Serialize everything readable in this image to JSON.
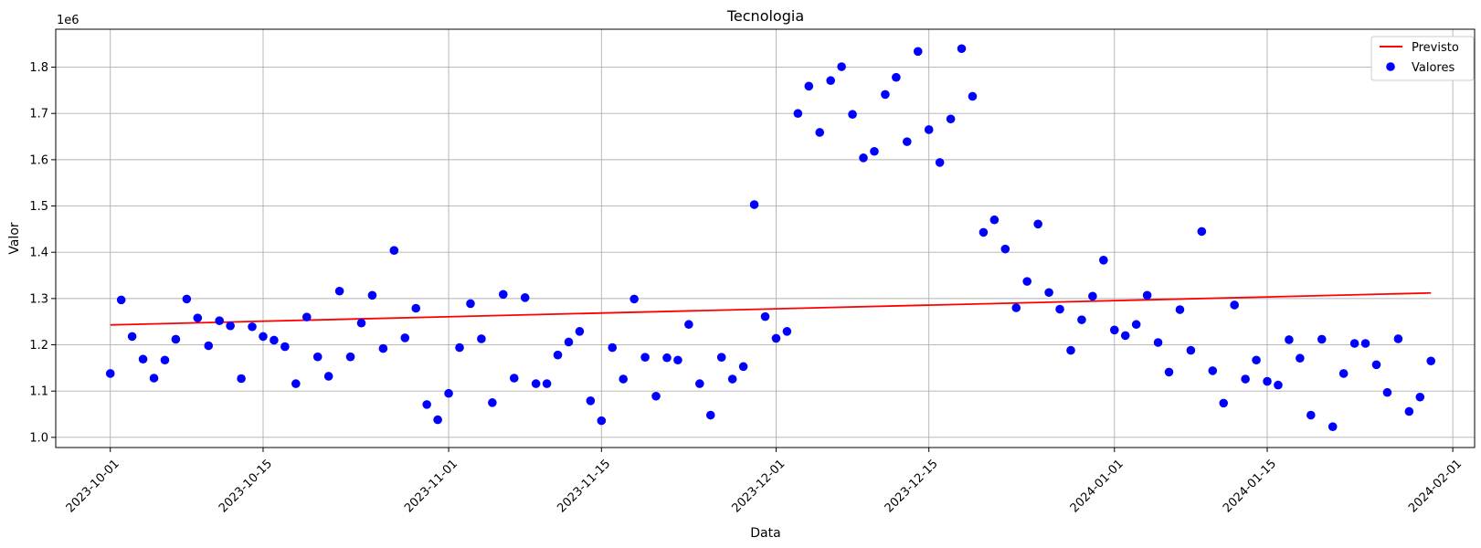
{
  "chart_data": {
    "type": "scatter",
    "title": "Tecnologia",
    "xlabel": "Data",
    "ylabel": "Valor",
    "y_offset_label": "1e6",
    "xlim": [
      "2023-09-26",
      "2024-02-03"
    ],
    "ylim": [
      0.978,
      1.882
    ],
    "y_scale_multiplier": 1000000,
    "grid": true,
    "legend_position": "top-right",
    "x_ticks": [
      "2023-10-01",
      "2023-10-15",
      "2023-11-01",
      "2023-11-15",
      "2023-12-01",
      "2023-12-15",
      "2024-01-01",
      "2024-01-15",
      "2024-02-01"
    ],
    "y_ticks": [
      1.0,
      1.1,
      1.2,
      1.3,
      1.4,
      1.5,
      1.6,
      1.7,
      1.8
    ],
    "y_tick_labels": [
      "1.0",
      "1.1",
      "1.2",
      "1.3",
      "1.4",
      "1.5",
      "1.6",
      "1.7",
      "1.8"
    ],
    "colors": {
      "scatter": "#0000ff",
      "line": "#ff0000",
      "grid": "#b0b0b0"
    },
    "series": [
      {
        "name": "Previsto",
        "kind": "line",
        "x": [
          "2023-10-01",
          "2024-01-30"
        ],
        "y": [
          1.243,
          1.312
        ]
      },
      {
        "name": "Valores",
        "kind": "scatter",
        "x": [
          "2023-10-01",
          "2023-10-02",
          "2023-10-03",
          "2023-10-04",
          "2023-10-05",
          "2023-10-06",
          "2023-10-07",
          "2023-10-08",
          "2023-10-09",
          "2023-10-10",
          "2023-10-11",
          "2023-10-12",
          "2023-10-13",
          "2023-10-14",
          "2023-10-15",
          "2023-10-16",
          "2023-10-17",
          "2023-10-18",
          "2023-10-19",
          "2023-10-20",
          "2023-10-21",
          "2023-10-22",
          "2023-10-23",
          "2023-10-24",
          "2023-10-25",
          "2023-10-26",
          "2023-10-27",
          "2023-10-28",
          "2023-10-29",
          "2023-10-30",
          "2023-10-31",
          "2023-11-01",
          "2023-11-02",
          "2023-11-03",
          "2023-11-04",
          "2023-11-05",
          "2023-11-06",
          "2023-11-07",
          "2023-11-08",
          "2023-11-09",
          "2023-11-10",
          "2023-11-11",
          "2023-11-12",
          "2023-11-13",
          "2023-11-14",
          "2023-11-15",
          "2023-11-16",
          "2023-11-17",
          "2023-11-18",
          "2023-11-19",
          "2023-11-20",
          "2023-11-21",
          "2023-11-22",
          "2023-11-23",
          "2023-11-24",
          "2023-11-25",
          "2023-11-26",
          "2023-11-27",
          "2023-11-28",
          "2023-11-29",
          "2023-11-30",
          "2023-12-01",
          "2023-12-02",
          "2023-12-03",
          "2023-12-04",
          "2023-12-05",
          "2023-12-06",
          "2023-12-07",
          "2023-12-08",
          "2023-12-09",
          "2023-12-10",
          "2023-12-11",
          "2023-12-12",
          "2023-12-13",
          "2023-12-14",
          "2023-12-15",
          "2023-12-16",
          "2023-12-17",
          "2023-12-18",
          "2023-12-19",
          "2023-12-20",
          "2023-12-21",
          "2023-12-22",
          "2023-12-23",
          "2023-12-24",
          "2023-12-25",
          "2023-12-26",
          "2023-12-27",
          "2023-12-28",
          "2023-12-29",
          "2023-12-30",
          "2023-12-31",
          "2024-01-01",
          "2024-01-02",
          "2024-01-03",
          "2024-01-04",
          "2024-01-05",
          "2024-01-06",
          "2024-01-07",
          "2024-01-08",
          "2024-01-09",
          "2024-01-10",
          "2024-01-11",
          "2024-01-12",
          "2024-01-13",
          "2024-01-14",
          "2024-01-15",
          "2024-01-16",
          "2024-01-17",
          "2024-01-18",
          "2024-01-19",
          "2024-01-20",
          "2024-01-21",
          "2024-01-22",
          "2024-01-23",
          "2024-01-24",
          "2024-01-25",
          "2024-01-26",
          "2024-01-27",
          "2024-01-28",
          "2024-01-29",
          "2024-01-30"
        ],
        "y": [
          1.138,
          1.297,
          1.218,
          1.169,
          1.128,
          1.167,
          1.212,
          1.299,
          1.258,
          1.198,
          1.252,
          1.241,
          1.127,
          1.239,
          1.218,
          1.21,
          1.196,
          1.116,
          1.26,
          1.174,
          1.132,
          1.316,
          1.174,
          1.247,
          1.307,
          1.192,
          1.404,
          1.215,
          1.279,
          1.071,
          1.038,
          1.095,
          1.194,
          1.289,
          1.213,
          1.075,
          1.309,
          1.128,
          1.302,
          1.116,
          1.116,
          1.178,
          1.206,
          1.229,
          1.079,
          1.036,
          1.194,
          1.126,
          1.299,
          1.173,
          1.089,
          1.172,
          1.167,
          1.244,
          1.116,
          1.048,
          1.173,
          1.126,
          1.153,
          1.503,
          1.261,
          1.214,
          1.229,
          1.7,
          1.759,
          1.659,
          1.771,
          1.801,
          1.698,
          1.604,
          1.618,
          1.741,
          1.778,
          1.639,
          1.834,
          1.665,
          1.594,
          1.688,
          1.84,
          1.737,
          1.443,
          1.47,
          1.407,
          1.28,
          1.337,
          1.461,
          1.313,
          1.277,
          1.188,
          1.254,
          1.305,
          1.383,
          1.232,
          1.22,
          1.244,
          1.307,
          1.205,
          1.141,
          1.276,
          1.188,
          1.445,
          1.144,
          1.074,
          1.286,
          1.126,
          1.167,
          1.121,
          1.113,
          1.211,
          1.171,
          1.048,
          1.212,
          1.023,
          1.138,
          1.203,
          1.203,
          1.157,
          1.097,
          1.213,
          1.056,
          1.087,
          1.165
        ]
      }
    ]
  }
}
